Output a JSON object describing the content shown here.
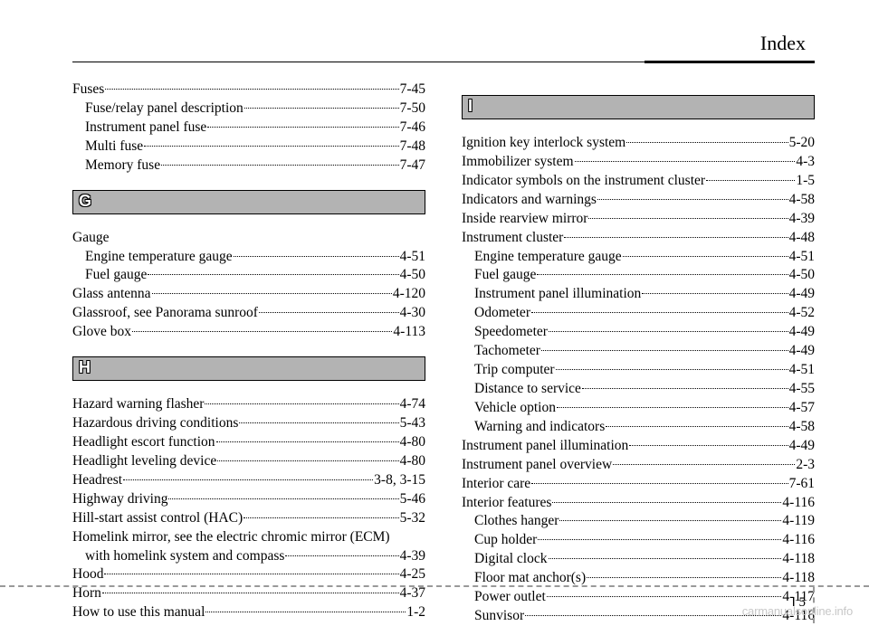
{
  "header": {
    "title": "Index"
  },
  "page_number": {
    "letter": "I",
    "num": "5"
  },
  "watermark": "carmanualsonline.info",
  "left": {
    "pre": [
      {
        "label": "Fuses",
        "page": "7-45",
        "indent": 0
      },
      {
        "label": "Fuse/relay panel description",
        "page": "7-50",
        "indent": 1
      },
      {
        "label": "Instrument panel fuse",
        "page": "7-46",
        "indent": 1
      },
      {
        "label": "Multi fuse",
        "page": "7-48",
        "indent": 1
      },
      {
        "label": "Memory fuse",
        "page": "7-47",
        "indent": 1
      }
    ],
    "sectionG": {
      "letter": "G",
      "entries": [
        {
          "label": "Gauge",
          "page": "",
          "indent": 0,
          "noline": true
        },
        {
          "label": "Engine temperature gauge",
          "page": "4-51",
          "indent": 1
        },
        {
          "label": "Fuel gauge",
          "page": "4-50",
          "indent": 1
        },
        {
          "label": "Glass antenna",
          "page": "4-120",
          "indent": 0
        },
        {
          "label": "Glassroof, see Panorama sunroof",
          "page": "4-30",
          "indent": 0
        },
        {
          "label": "Glove box",
          "page": "4-113",
          "indent": 0
        }
      ]
    },
    "sectionH": {
      "letter": "H",
      "entries": [
        {
          "label": "Hazard warning flasher",
          "page": "4-74",
          "indent": 0
        },
        {
          "label": "Hazardous driving conditions",
          "page": "5-43",
          "indent": 0
        },
        {
          "label": "Headlight escort function",
          "page": "4-80",
          "indent": 0
        },
        {
          "label": "Headlight leveling device",
          "page": "4-80",
          "indent": 0
        },
        {
          "label": "Headrest",
          "page": "3-8, 3-15",
          "indent": 0
        },
        {
          "label": "Highway driving",
          "page": "5-46",
          "indent": 0
        },
        {
          "label": "Hill-start assist control (HAC)",
          "page": "5-32",
          "indent": 0
        },
        {
          "label": "Homelink mirror, see the electric chromic mirror (ECM)",
          "page": "",
          "indent": 0,
          "noline": true
        },
        {
          "label": "with homelink system and compass",
          "page": "4-39",
          "indent": 1
        },
        {
          "label": "Hood",
          "page": "4-25",
          "indent": 0
        },
        {
          "label": "Horn",
          "page": "4-37",
          "indent": 0
        },
        {
          "label": "How to use this manual",
          "page": "1-2",
          "indent": 0
        }
      ]
    }
  },
  "right": {
    "sectionI": {
      "letter": "I",
      "entries": [
        {
          "label": "Ignition key interlock system",
          "page": "5-20",
          "indent": 0
        },
        {
          "label": "Immobilizer system",
          "page": "4-3",
          "indent": 0
        },
        {
          "label": "Indicator symbols on the instrument cluster",
          "page": "1-5",
          "indent": 0
        },
        {
          "label": "Indicators and warnings",
          "page": "4-58",
          "indent": 0
        },
        {
          "label": "Inside rearview mirror",
          "page": "4-39",
          "indent": 0
        },
        {
          "label": "Instrument cluster",
          "page": "4-48",
          "indent": 0
        },
        {
          "label": "Engine temperature gauge",
          "page": "4-51",
          "indent": 1
        },
        {
          "label": "Fuel gauge",
          "page": "4-50",
          "indent": 1
        },
        {
          "label": "Instrument panel illumination",
          "page": "4-49",
          "indent": 1
        },
        {
          "label": "Odometer",
          "page": "4-52",
          "indent": 1
        },
        {
          "label": "Speedometer",
          "page": "4-49",
          "indent": 1
        },
        {
          "label": "Tachometer",
          "page": "4-49",
          "indent": 1
        },
        {
          "label": "Trip computer",
          "page": "4-51",
          "indent": 1
        },
        {
          "label": "Distance to service",
          "page": "4-55",
          "indent": 1
        },
        {
          "label": "Vehicle option",
          "page": "4-57",
          "indent": 1
        },
        {
          "label": "Warning and indicators",
          "page": "4-58",
          "indent": 1
        },
        {
          "label": "Instrument panel illumination",
          "page": "4-49",
          "indent": 0
        },
        {
          "label": "Instrument panel overview",
          "page": "2-3",
          "indent": 0
        },
        {
          "label": "Interior care",
          "page": "7-61",
          "indent": 0
        },
        {
          "label": "Interior features",
          "page": "4-116",
          "indent": 0
        },
        {
          "label": "Clothes hanger",
          "page": "4-119",
          "indent": 1
        },
        {
          "label": "Cup holder",
          "page": "4-116",
          "indent": 1
        },
        {
          "label": "Digital clock",
          "page": "4-118",
          "indent": 1
        },
        {
          "label": "Floor mat anchor(s)",
          "page": "4-118",
          "indent": 1
        },
        {
          "label": "Power outlet",
          "page": "4-117",
          "indent": 1
        },
        {
          "label": "Sunvisor",
          "page": "4-116",
          "indent": 1
        }
      ]
    }
  }
}
